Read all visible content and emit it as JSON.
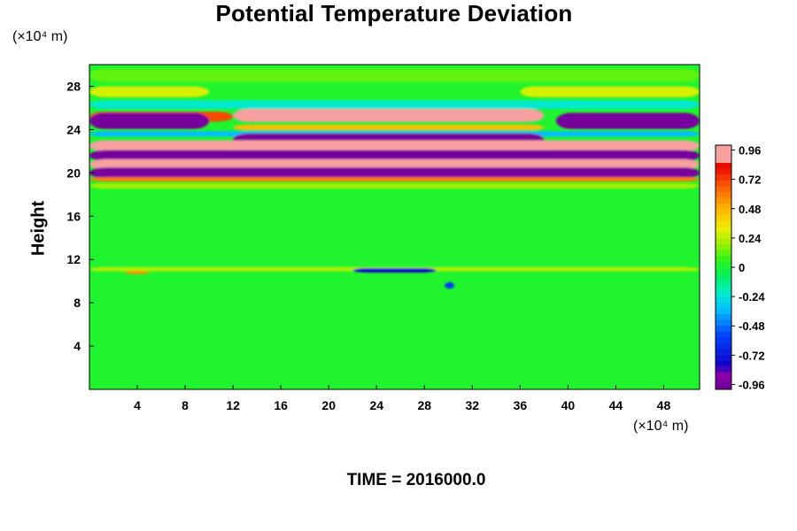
{
  "chart_data": {
    "type": "heatmap",
    "title": "Potential Temperature Deviation",
    "ylabel": "Height",
    "xlabel": "",
    "x_unit_label": "(×10⁴ m)",
    "y_unit_label": "(×10⁴ m)",
    "xlim": [
      0,
      51
    ],
    "ylim": [
      0,
      30
    ],
    "x_ticks": [
      4,
      8,
      12,
      16,
      20,
      24,
      28,
      32,
      36,
      40,
      44,
      48
    ],
    "y_ticks": [
      4,
      8,
      12,
      16,
      20,
      24,
      28
    ],
    "colorbar": {
      "range": [
        -1.0,
        1.0
      ],
      "ticks": [
        "0.96",
        "0.72",
        "0.48",
        "0.24",
        "0",
        "-0.24",
        "-0.48",
        "-0.72",
        "-0.96"
      ],
      "tick_values": [
        0.96,
        0.72,
        0.48,
        0.24,
        0,
        -0.24,
        -0.48,
        -0.72,
        -0.96
      ]
    },
    "background_value": 0.02,
    "bands": [
      {
        "y": 29.0,
        "thickness": 1.2,
        "value": 0.12,
        "x_start": 0,
        "x_end": 51
      },
      {
        "y": 27.5,
        "thickness": 1.0,
        "value": 0.28,
        "x_start": 0,
        "x_end": 10
      },
      {
        "y": 27.5,
        "thickness": 1.0,
        "value": 0.28,
        "x_start": 36,
        "x_end": 51
      },
      {
        "y": 26.3,
        "thickness": 0.8,
        "value": -0.22,
        "x_start": 0,
        "x_end": 51
      },
      {
        "y": 25.2,
        "thickness": 0.9,
        "value": 0.7,
        "x_start": 0,
        "x_end": 12
      },
      {
        "y": 24.8,
        "thickness": 1.5,
        "value": -0.96,
        "x_start": 0,
        "x_end": 10
      },
      {
        "y": 24.8,
        "thickness": 1.5,
        "value": -0.96,
        "x_start": 39,
        "x_end": 51
      },
      {
        "y": 25.3,
        "thickness": 1.2,
        "value": 0.96,
        "x_start": 12,
        "x_end": 38
      },
      {
        "y": 24.2,
        "thickness": 0.5,
        "value": 0.45,
        "x_start": 12,
        "x_end": 38
      },
      {
        "y": 23.6,
        "thickness": 0.5,
        "value": -0.35,
        "x_start": 0,
        "x_end": 51
      },
      {
        "y": 23.1,
        "thickness": 1.1,
        "value": -0.96,
        "x_start": 12,
        "x_end": 38
      },
      {
        "y": 22.5,
        "thickness": 1.0,
        "value": 0.96,
        "x_start": 0,
        "x_end": 51
      },
      {
        "y": 21.6,
        "thickness": 1.0,
        "value": -0.96,
        "x_start": 0,
        "x_end": 51
      },
      {
        "y": 20.8,
        "thickness": 0.9,
        "value": 0.96,
        "x_start": 0,
        "x_end": 51
      },
      {
        "y": 20.0,
        "thickness": 1.0,
        "value": -0.96,
        "x_start": 0,
        "x_end": 51
      },
      {
        "y": 19.4,
        "thickness": 0.4,
        "value": 0.6,
        "x_start": 0,
        "x_end": 51
      },
      {
        "y": 18.8,
        "thickness": 0.5,
        "value": 0.2,
        "x_start": 0,
        "x_end": 51
      },
      {
        "y": 11.1,
        "thickness": 0.4,
        "value": 0.22,
        "x_start": 0,
        "x_end": 51
      },
      {
        "y": 10.8,
        "thickness": 0.3,
        "value": 0.55,
        "x_start": 3,
        "x_end": 5
      },
      {
        "y": 11.0,
        "thickness": 0.4,
        "value": -0.8,
        "x_start": 22,
        "x_end": 29
      },
      {
        "y": 9.6,
        "thickness": 0.6,
        "value": -0.6,
        "x_start": 29.7,
        "x_end": 30.5
      }
    ]
  },
  "footer": {
    "time_label": "TIME = 2016000.0"
  }
}
